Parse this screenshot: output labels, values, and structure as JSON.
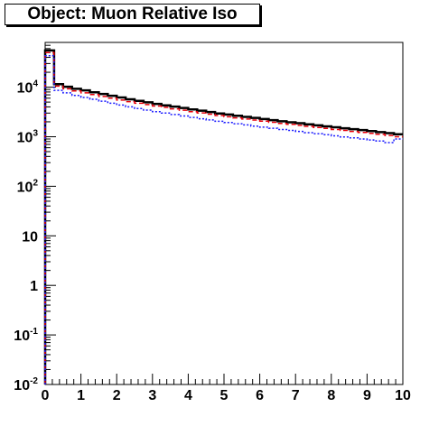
{
  "chart_data": {
    "type": "step-histogram",
    "title": "Object: Muon Relative Iso",
    "xlabel": "",
    "ylabel": "",
    "xlim": [
      0,
      10
    ],
    "ylim": [
      0.01,
      80000
    ],
    "ylog": true,
    "grid": false,
    "legend": "none",
    "x_ticks": [
      "0",
      "1",
      "2",
      "3",
      "4",
      "5",
      "6",
      "7",
      "8",
      "9",
      "10"
    ],
    "y_ticks": [
      {
        "value": 0.01,
        "base": "10",
        "exp": "-2"
      },
      {
        "value": 0.1,
        "base": "10",
        "exp": "-1"
      },
      {
        "value": 1,
        "base": "1",
        "exp": ""
      },
      {
        "value": 10,
        "base": "10",
        "exp": ""
      },
      {
        "value": 100,
        "base": "10",
        "exp": "2"
      },
      {
        "value": 1000,
        "base": "10",
        "exp": "3"
      },
      {
        "value": 10000,
        "base": "10",
        "exp": "4"
      }
    ],
    "bin_edges": [
      0,
      0.25,
      0.5,
      0.75,
      1,
      1.25,
      1.5,
      1.75,
      2,
      2.25,
      2.5,
      2.75,
      3,
      3.25,
      3.5,
      3.75,
      4,
      4.25,
      4.5,
      4.75,
      5,
      5.25,
      5.5,
      5.75,
      6,
      6.25,
      6.5,
      6.75,
      7,
      7.25,
      7.5,
      7.75,
      8,
      8.25,
      8.5,
      8.75,
      9,
      9.25,
      9.5,
      9.75,
      10
    ],
    "series": [
      {
        "color": "#000000",
        "style": "solid",
        "width": 2.5,
        "values": [
          55000,
          11500,
          10200,
          9300,
          8600,
          7900,
          7300,
          6700,
          6200,
          5700,
          5300,
          4950,
          4600,
          4300,
          4050,
          3800,
          3550,
          3350,
          3150,
          2950,
          2800,
          2650,
          2520,
          2400,
          2280,
          2160,
          2050,
          1960,
          1870,
          1780,
          1700,
          1620,
          1550,
          1480,
          1420,
          1360,
          1300,
          1240,
          1180,
          1120
        ]
      },
      {
        "color": "#e8000b",
        "style": "dashed",
        "width": 1.5,
        "values": [
          50000,
          10500,
          9300,
          8400,
          7700,
          7100,
          6500,
          6000,
          5500,
          5100,
          4750,
          4450,
          4150,
          3900,
          3650,
          3420,
          3200,
          3020,
          2850,
          2680,
          2530,
          2400,
          2280,
          2170,
          2060,
          1960,
          1860,
          1780,
          1700,
          1620,
          1540,
          1470,
          1400,
          1340,
          1280,
          1220,
          1170,
          1120,
          1060,
          1000
        ]
      },
      {
        "color": "#1a1aff",
        "style": "dotted",
        "width": 1.5,
        "values": [
          43000,
          8600,
          7700,
          6800,
          6200,
          5700,
          5200,
          4750,
          4350,
          4000,
          3700,
          3450,
          3200,
          3000,
          2800,
          2620,
          2450,
          2300,
          2180,
          2050,
          1930,
          1830,
          1730,
          1640,
          1560,
          1480,
          1400,
          1340,
          1280,
          1210,
          1150,
          1100,
          1040,
          990,
          950,
          900,
          860,
          820,
          760,
          900
        ]
      }
    ]
  }
}
